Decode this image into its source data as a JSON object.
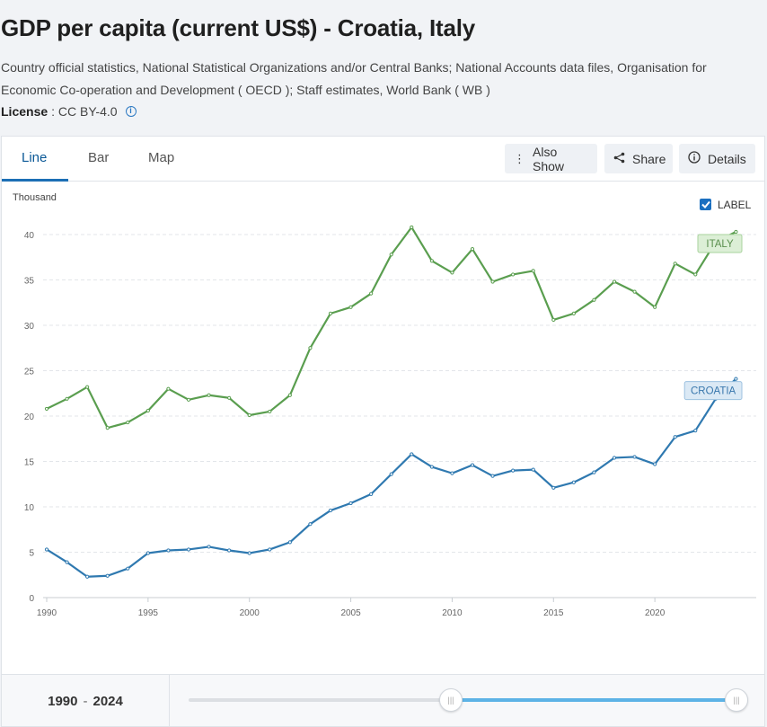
{
  "header": {
    "title": "GDP per capita (current US$) - Croatia, Italy",
    "source": "Country official statistics, National Statistical Organizations and/or Central Banks; National Accounts data files, Organisation for Economic Co-operation and Development ( OECD ); Staff estimates, World Bank ( WB )",
    "license_label": "License",
    "license_value": ": CC BY-4.0"
  },
  "tabs": [
    {
      "label": "Line",
      "active": true
    },
    {
      "label": "Bar",
      "active": false
    },
    {
      "label": "Map",
      "active": false
    }
  ],
  "actions": {
    "also_show": "Also Show",
    "share": "Share",
    "details": "Details"
  },
  "label_toggle": {
    "text": "LABEL",
    "checked": true
  },
  "footer": {
    "range_start": "1990",
    "range_sep": "-",
    "range_end": "2024"
  },
  "chart_data": {
    "type": "line",
    "title": "",
    "xlabel": "",
    "ylabel": "Thousand",
    "x": [
      1990,
      1991,
      1992,
      1993,
      1994,
      1995,
      1996,
      1997,
      1998,
      1999,
      2000,
      2001,
      2002,
      2003,
      2004,
      2005,
      2006,
      2007,
      2008,
      2009,
      2010,
      2011,
      2012,
      2013,
      2014,
      2015,
      2016,
      2017,
      2018,
      2019,
      2020,
      2021,
      2022,
      2023,
      2024
    ],
    "xticks": [
      "1990",
      "1995",
      "2000",
      "2005",
      "2010",
      "2015",
      "2020"
    ],
    "ylim": [
      0,
      40
    ],
    "yticks": [
      "0",
      "5",
      "10",
      "15",
      "20",
      "25",
      "30",
      "35",
      "40"
    ],
    "grid": true,
    "series": [
      {
        "name": "ITALY",
        "color": "#5a9e4f",
        "label_bg": "#dcefd6",
        "label_border": "#a9d39d",
        "label_color": "#5a8f4d",
        "values": [
          20.8,
          21.9,
          23.2,
          18.7,
          19.3,
          20.6,
          23.0,
          21.8,
          22.3,
          22.0,
          20.1,
          20.5,
          22.3,
          27.5,
          31.3,
          32.0,
          33.5,
          37.8,
          40.8,
          37.1,
          35.8,
          38.4,
          34.8,
          35.6,
          36.0,
          30.6,
          31.3,
          32.8,
          34.8,
          33.7,
          32.0,
          36.8,
          35.6,
          39.2,
          40.3
        ]
      },
      {
        "name": "CROATIA",
        "color": "#2f79b0",
        "label_bg": "#dbe9f5",
        "label_border": "#9cc1e0",
        "label_color": "#3a78ad",
        "values": [
          5.3,
          3.9,
          2.3,
          2.4,
          3.2,
          4.9,
          5.2,
          5.3,
          5.6,
          5.2,
          4.9,
          5.3,
          6.1,
          8.1,
          9.6,
          10.4,
          11.4,
          13.6,
          15.8,
          14.4,
          13.7,
          14.6,
          13.4,
          14.0,
          14.1,
          12.1,
          12.7,
          13.8,
          15.4,
          15.5,
          14.7,
          17.7,
          18.4,
          21.9,
          24.1
        ]
      }
    ]
  }
}
